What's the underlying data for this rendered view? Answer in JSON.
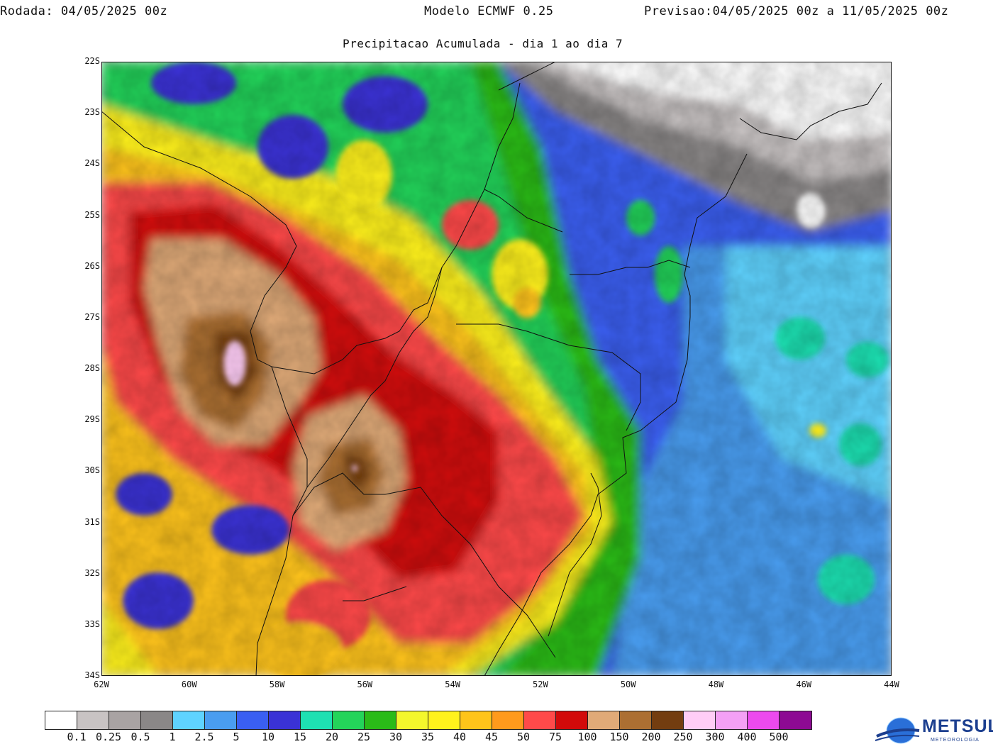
{
  "header": {
    "run_label": "Rodada:",
    "run_value": "04/05/2025 00z",
    "model": "Modelo ECMWF 0.25",
    "forecast_label": "Previsao:",
    "forecast_value": "04/05/2025 00z a 11/05/2025 00z"
  },
  "subtitle": "Precipitacao Acumulada - dia 1 ao dia 7",
  "map": {
    "lat_labels": [
      "22S",
      "23S",
      "24S",
      "25S",
      "26S",
      "27S",
      "28S",
      "29S",
      "30S",
      "31S",
      "32S",
      "33S",
      "34S"
    ],
    "lon_labels": [
      "62W",
      "60W",
      "58W",
      "56W",
      "54W",
      "52W",
      "50W",
      "48W",
      "46W",
      "44W"
    ],
    "lat_range": [
      -34,
      -22
    ],
    "lon_range": [
      -62,
      -44
    ]
  },
  "legend": {
    "colors": [
      "#ffffff",
      "#c8c3c3",
      "#a9a3a3",
      "#8a8787",
      "#5fd3ff",
      "#4a9df0",
      "#3a5ff2",
      "#3a32d6",
      "#1ee0b2",
      "#24d45a",
      "#2abb18",
      "#f4f72c",
      "#fff21c",
      "#ffc41a",
      "#ff9a1c",
      "#ff4a4a",
      "#d20a0a",
      "#e0aa78",
      "#ac6f32",
      "#733d10",
      "#ffcdf6",
      "#f4a0f5",
      "#ec4aee",
      "#8d0a93"
    ],
    "values": [
      "0.1",
      "0.25",
      "0.5",
      "1",
      "2.5",
      "5",
      "10",
      "15",
      "20",
      "25",
      "30",
      "35",
      "40",
      "45",
      "50",
      "75",
      "100",
      "150",
      "200",
      "250",
      "300",
      "400",
      "500"
    ]
  },
  "logo": {
    "name": "METSUL",
    "tagline": "METEOROLOGIA",
    "colors": {
      "brand": "#1c3f8f",
      "globe": "#2a6fd8"
    }
  }
}
